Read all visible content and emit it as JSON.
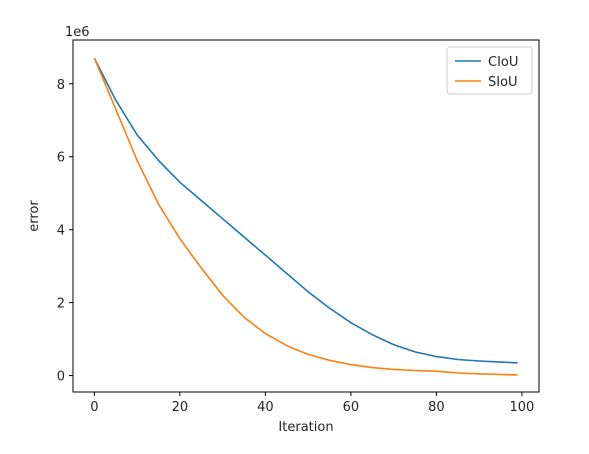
{
  "chart_data": {
    "type": "line",
    "title": "",
    "xlabel": "Iteration",
    "ylabel": "error",
    "y_offset_label": "1e6",
    "xlim": [
      -5,
      104
    ],
    "ylim": [
      -0.45,
      9.2
    ],
    "x_ticks": [
      0,
      20,
      40,
      60,
      80,
      100
    ],
    "y_ticks": [
      0,
      2,
      4,
      6,
      8
    ],
    "grid": false,
    "legend_placement": "top-right",
    "series": [
      {
        "name": "CIoU",
        "color": "#1f77b4",
        "x": [
          0,
          5,
          10,
          15,
          20,
          25,
          30,
          35,
          40,
          45,
          50,
          55,
          60,
          65,
          70,
          75,
          80,
          85,
          90,
          95,
          99
        ],
        "y": [
          8.7,
          7.55,
          6.6,
          5.9,
          5.3,
          4.8,
          4.3,
          3.8,
          3.3,
          2.8,
          2.3,
          1.85,
          1.45,
          1.12,
          0.85,
          0.65,
          0.52,
          0.44,
          0.4,
          0.37,
          0.35
        ]
      },
      {
        "name": "SIoU",
        "color": "#ff7f0e",
        "x": [
          0,
          5,
          10,
          15,
          20,
          25,
          30,
          35,
          40,
          45,
          50,
          55,
          60,
          65,
          70,
          75,
          80,
          85,
          90,
          95,
          99
        ],
        "y": [
          8.7,
          7.3,
          5.9,
          4.7,
          3.75,
          2.95,
          2.2,
          1.6,
          1.15,
          0.82,
          0.58,
          0.42,
          0.3,
          0.22,
          0.17,
          0.14,
          0.12,
          0.07,
          0.05,
          0.03,
          0.02
        ]
      }
    ]
  }
}
